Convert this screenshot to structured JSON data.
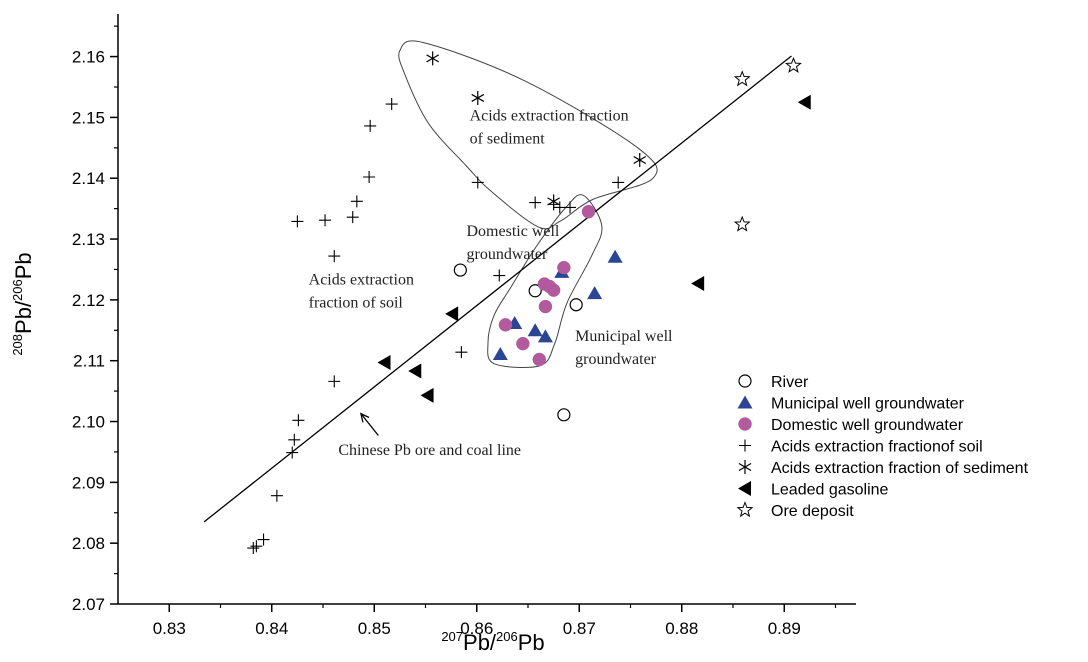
{
  "chart_data": {
    "type": "scatter",
    "xlabel": {
      "sup1": "207",
      "base1": "Pb/",
      "sup2": "206",
      "base2": "Pb"
    },
    "ylabel": {
      "sup1": "208",
      "base1": "Pb/",
      "sup2": "206",
      "base2": "Pb"
    },
    "xlim": [
      0.825,
      0.897
    ],
    "ylim": [
      2.07,
      2.167
    ],
    "x_ticks": [
      "0.83",
      "0.84",
      "0.85",
      "0.86",
      "0.87",
      "0.88",
      "0.89"
    ],
    "y_ticks": [
      "2.07",
      "2.08",
      "2.09",
      "2.10",
      "2.11",
      "2.12",
      "2.13",
      "2.14",
      "2.15",
      "2.16"
    ],
    "grid": false,
    "legend_position": "bottom-right",
    "reference_line": {
      "from": [
        0.8334,
        2.0835
      ],
      "to": [
        0.8907,
        2.1601
      ]
    },
    "series": [
      {
        "name": "River",
        "marker": "circle-open",
        "color": "#000000",
        "points": [
          [
            0.8584,
            2.1249
          ],
          [
            0.8657,
            2.1215
          ],
          [
            0.8697,
            2.1192
          ],
          [
            0.8685,
            2.1011
          ]
        ]
      },
      {
        "name": "Municipal well groundwater",
        "marker": "triangle",
        "color": "#2a4593",
        "points": [
          [
            0.8735,
            2.1271
          ],
          [
            0.8683,
            2.1246
          ],
          [
            0.8715,
            2.1211
          ],
          [
            0.8637,
            2.1162
          ],
          [
            0.8657,
            2.115
          ],
          [
            0.8667,
            2.114
          ],
          [
            0.8623,
            2.1111
          ]
        ]
      },
      {
        "name": "Domestic well groundwater",
        "marker": "circle-filled",
        "color": "#b35a9e",
        "points": [
          [
            0.8709,
            2.1345
          ],
          [
            0.8685,
            2.1253
          ],
          [
            0.8666,
            2.1226
          ],
          [
            0.8671,
            2.1222
          ],
          [
            0.8675,
            2.1216
          ],
          [
            0.8628,
            2.1159
          ],
          [
            0.8667,
            2.1189
          ],
          [
            0.8645,
            2.1128
          ],
          [
            0.8661,
            2.1102
          ]
        ]
      },
      {
        "name": "Acids extraction fractionof soil",
        "marker": "plus",
        "color": "#000000",
        "points": [
          [
            0.8517,
            2.1522
          ],
          [
            0.8496,
            2.1486
          ],
          [
            0.8495,
            2.1402
          ],
          [
            0.8483,
            2.1362
          ],
          [
            0.8479,
            2.1336
          ],
          [
            0.8452,
            2.1331
          ],
          [
            0.8425,
            2.1329
          ],
          [
            0.8461,
            2.1272
          ],
          [
            0.8601,
            2.1393
          ],
          [
            0.8657,
            2.136
          ],
          [
            0.8691,
            2.1352
          ],
          [
            0.8738,
            2.1393
          ],
          [
            0.8622,
            2.124
          ],
          [
            0.8585,
            2.1114
          ],
          [
            0.8461,
            2.1066
          ],
          [
            0.8426,
            2.1002
          ],
          [
            0.8422,
            2.097
          ],
          [
            0.842,
            2.0949
          ],
          [
            0.8405,
            2.0878
          ],
          [
            0.8392,
            2.0806
          ],
          [
            0.8385,
            2.0795
          ],
          [
            0.8382,
            2.0792
          ],
          [
            0.8681,
            2.1352
          ],
          [
            0.8675,
            2.1357
          ]
        ]
      },
      {
        "name": "Acids extraction fraction of sediment",
        "marker": "asterisk",
        "color": "#000000",
        "points": [
          [
            0.8557,
            2.1597
          ],
          [
            0.8601,
            2.1532
          ],
          [
            0.8759,
            2.143
          ],
          [
            0.8675,
            2.1362
          ]
        ]
      },
      {
        "name": "Leaded gasoline",
        "marker": "triangle-left",
        "color": "#000000",
        "points": [
          [
            0.892,
            2.1525
          ],
          [
            0.8816,
            2.1227
          ],
          [
            0.8576,
            2.1177
          ],
          [
            0.851,
            2.1097
          ],
          [
            0.854,
            2.1083
          ],
          [
            0.8552,
            2.1043
          ]
        ]
      },
      {
        "name": "Ore deposit",
        "marker": "star-open",
        "color": "#000000",
        "points": [
          [
            0.8909,
            2.1585
          ],
          [
            0.8859,
            2.1563
          ],
          [
            0.8859,
            2.1324
          ]
        ]
      }
    ],
    "enclosures": [
      {
        "name": "Acids extraction fraction of sediment",
        "polygon": [
          [
            0.8548,
            2.1623
          ],
          [
            0.8647,
            2.156
          ],
          [
            0.8757,
            2.145
          ],
          [
            0.8772,
            2.14
          ],
          [
            0.8713,
            2.1365
          ],
          [
            0.8682,
            2.133
          ],
          [
            0.866,
            2.132
          ],
          [
            0.8613,
            2.138
          ],
          [
            0.859,
            2.142
          ],
          [
            0.8553,
            2.149
          ],
          [
            0.853,
            2.157
          ],
          [
            0.8525,
            2.161
          ]
        ]
      },
      {
        "name": "Domestic / Municipal well groundwater",
        "polygon": [
          [
            0.8704,
            2.1372
          ],
          [
            0.8722,
            2.1322
          ],
          [
            0.8712,
            2.1272
          ],
          [
            0.8688,
            2.1195
          ],
          [
            0.8676,
            2.1128
          ],
          [
            0.8662,
            2.1092
          ],
          [
            0.8617,
            2.1095
          ],
          [
            0.8611,
            2.113
          ],
          [
            0.8617,
            2.1175
          ],
          [
            0.8633,
            2.122
          ],
          [
            0.8659,
            2.129
          ],
          [
            0.8687,
            2.1352
          ]
        ]
      }
    ],
    "annotations": [
      {
        "lines": [
          "Acids extraction fraction",
          "of sediment"
        ],
        "x": 0.8593,
        "y": 2.1495,
        "color": "#222222"
      },
      {
        "lines": [
          "Domestic well",
          "groundwater"
        ],
        "x": 0.859,
        "y": 2.1305,
        "color": "#a0559a"
      },
      {
        "lines": [
          "Acids extraction",
          "fraction of soil"
        ],
        "x": 0.8436,
        "y": 2.1225,
        "color": "#222222"
      },
      {
        "lines": [
          "Municipal well",
          "groundwater"
        ],
        "x": 0.8696,
        "y": 2.1132,
        "color": "#3f5f6a"
      },
      {
        "lines": [
          "Chinese Pb ore and coal line"
        ],
        "x": 0.8465,
        "y": 2.0945,
        "color": "#222222"
      }
    ],
    "arrow": {
      "from": [
        0.8504,
        2.0977
      ],
      "to": [
        0.8487,
        2.1013
      ]
    }
  }
}
